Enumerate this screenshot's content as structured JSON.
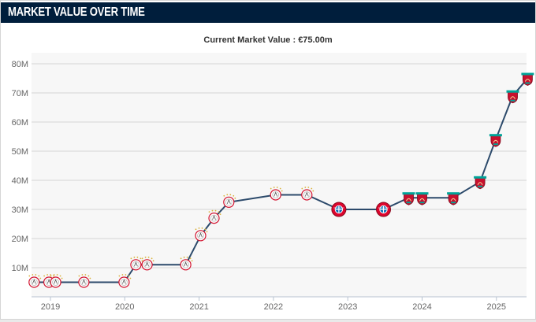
{
  "header": {
    "title": "MARKET VALUE OVER TIME"
  },
  "colors": {
    "header_bg": "#001e3c",
    "line": "#2c4a6b",
    "grid": "#d6d6d6",
    "plot_bg": "#f7f7f7",
    "ajax": "#d2122e",
    "bayern": "#dc052d",
    "liverpool": "#c8102e",
    "liverpool_green": "#00a398"
  },
  "chart_data": {
    "type": "line",
    "title": "Current Market Value : €75.00m",
    "xlabel": "",
    "ylabel": "",
    "x_ticks": [
      "2019",
      "2020",
      "2021",
      "2022",
      "2023",
      "2024",
      "2025"
    ],
    "y_ticks": [
      "10M",
      "20M",
      "30M",
      "40M",
      "50M",
      "60M",
      "70M",
      "80M"
    ],
    "xlim": [
      2018.75,
      2025.45
    ],
    "ylim": [
      0,
      80
    ],
    "grid": true,
    "series": [
      {
        "points": [
          {
            "x": 2018.78,
            "y": 5,
            "club": "ajax-crest"
          },
          {
            "x": 2018.98,
            "y": 5,
            "club": "ajax-crest"
          },
          {
            "x": 2019.07,
            "y": 5,
            "club": "ajax-crest"
          },
          {
            "x": 2019.45,
            "y": 5,
            "club": "ajax-crest"
          },
          {
            "x": 2019.99,
            "y": 5,
            "club": "ajax-crest"
          },
          {
            "x": 2020.15,
            "y": 11,
            "club": "ajax-crest"
          },
          {
            "x": 2020.3,
            "y": 11,
            "club": "ajax-crest"
          },
          {
            "x": 2020.82,
            "y": 11,
            "club": "ajax-crest"
          },
          {
            "x": 2021.02,
            "y": 21,
            "club": "ajax-crest"
          },
          {
            "x": 2021.2,
            "y": 27,
            "club": "ajax-crest"
          },
          {
            "x": 2021.4,
            "y": 32.5,
            "club": "ajax-crest"
          },
          {
            "x": 2022.03,
            "y": 35,
            "club": "ajax-crest"
          },
          {
            "x": 2022.45,
            "y": 35,
            "club": "ajax-crest"
          },
          {
            "x": 2022.88,
            "y": 30,
            "club": "bayern-crest"
          },
          {
            "x": 2023.48,
            "y": 30,
            "club": "bayern-crest"
          },
          {
            "x": 2023.82,
            "y": 34,
            "club": "liverpool-crest"
          },
          {
            "x": 2024.0,
            "y": 34,
            "club": "liverpool-crest"
          },
          {
            "x": 2024.42,
            "y": 34,
            "club": "liverpool-crest"
          },
          {
            "x": 2024.78,
            "y": 39.5,
            "club": "liverpool-crest"
          },
          {
            "x": 2024.99,
            "y": 54,
            "club": "liverpool-crest"
          },
          {
            "x": 2025.22,
            "y": 69,
            "club": "liverpool-crest"
          },
          {
            "x": 2025.42,
            "y": 75,
            "club": "liverpool-crest"
          }
        ]
      }
    ]
  }
}
